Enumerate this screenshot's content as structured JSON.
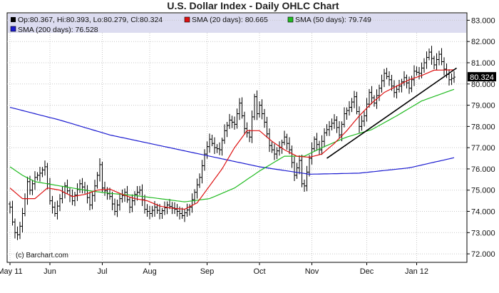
{
  "chart_data": {
    "type": "ohlc",
    "title": "U.S. Dollar Index - Daily OHLC Chart",
    "credit": "(c) Barchart.com",
    "legend": [
      {
        "label": "Op:80.367, Hi:80.393, Lo:80.279, Cl:80.324",
        "color": "#000000"
      },
      {
        "label": "SMA (20 days): 80.665",
        "color": "#dd1111"
      },
      {
        "label": "SMA (50 days): 79.749",
        "color": "#22bb22"
      },
      {
        "label": "SMA (200 days): 76.528",
        "color": "#1a1ad0"
      }
    ],
    "last_close_label": "80.324",
    "y_ticks": [
      "83.000",
      "82.000",
      "81.000",
      "80.000",
      "79.000",
      "78.000",
      "77.000",
      "76.000",
      "75.000",
      "74.000",
      "73.000",
      "72.000"
    ],
    "ylim": [
      71.6,
      83.35
    ],
    "x_labels": [
      {
        "label": "May 11",
        "day": 0
      },
      {
        "label": "Jun",
        "day": 16
      },
      {
        "label": "Jul",
        "day": 37
      },
      {
        "label": "Aug",
        "day": 56
      },
      {
        "label": "Sep",
        "day": 79
      },
      {
        "label": "Oct",
        "day": 100
      },
      {
        "label": "Nov",
        "day": 121
      },
      {
        "label": "Dec",
        "day": 143
      },
      {
        "label": "Jan 12",
        "day": 163
      }
    ],
    "close_anchors": [
      [
        0,
        74.2
      ],
      [
        1,
        73.5
      ],
      [
        2,
        73.0
      ],
      [
        3,
        72.9
      ],
      [
        4,
        73.3
      ],
      [
        5,
        73.9
      ],
      [
        6,
        74.6
      ],
      [
        7,
        75.4
      ],
      [
        8,
        75.0
      ],
      [
        10,
        75.6
      ],
      [
        12,
        75.8
      ],
      [
        14,
        76.1
      ],
      [
        16,
        74.5
      ],
      [
        18,
        73.9
      ],
      [
        20,
        74.6
      ],
      [
        22,
        75.2
      ],
      [
        25,
        74.5
      ],
      [
        28,
        75.3
      ],
      [
        30,
        75.0
      ],
      [
        32,
        74.3
      ],
      [
        34,
        75.2
      ],
      [
        36,
        76.2
      ],
      [
        37,
        75.1
      ],
      [
        40,
        74.7
      ],
      [
        42,
        74.0
      ],
      [
        44,
        74.6
      ],
      [
        46,
        74.9
      ],
      [
        48,
        74.2
      ],
      [
        50,
        74.8
      ],
      [
        52,
        75.0
      ],
      [
        54,
        74.1
      ],
      [
        56,
        73.9
      ],
      [
        58,
        74.2
      ],
      [
        60,
        73.9
      ],
      [
        63,
        74.3
      ],
      [
        66,
        74.1
      ],
      [
        69,
        73.8
      ],
      [
        72,
        74.2
      ],
      [
        74,
        74.9
      ],
      [
        76,
        75.6
      ],
      [
        78,
        76.7
      ],
      [
        80,
        77.4
      ],
      [
        82,
        77.0
      ],
      [
        84,
        76.9
      ],
      [
        86,
        77.8
      ],
      [
        88,
        78.3
      ],
      [
        90,
        78.1
      ],
      [
        92,
        79.1
      ],
      [
        94,
        77.9
      ],
      [
        96,
        77.5
      ],
      [
        98,
        79.4
      ],
      [
        99,
        78.6
      ],
      [
        100,
        79.0
      ],
      [
        102,
        78.2
      ],
      [
        104,
        77.1
      ],
      [
        106,
        76.7
      ],
      [
        108,
        77.0
      ],
      [
        110,
        77.5
      ],
      [
        112,
        76.9
      ],
      [
        114,
        75.7
      ],
      [
        116,
        76.4
      ],
      [
        117,
        75.3
      ],
      [
        118,
        75.2
      ],
      [
        120,
        76.5
      ],
      [
        122,
        77.4
      ],
      [
        124,
        76.9
      ],
      [
        126,
        77.7
      ],
      [
        128,
        78.0
      ],
      [
        130,
        78.3
      ],
      [
        132,
        77.6
      ],
      [
        134,
        78.6
      ],
      [
        136,
        78.9
      ],
      [
        138,
        79.4
      ],
      [
        140,
        78.0
      ],
      [
        142,
        78.5
      ],
      [
        144,
        79.6
      ],
      [
        146,
        79.1
      ],
      [
        148,
        79.8
      ],
      [
        150,
        80.5
      ],
      [
        152,
        80.2
      ],
      [
        154,
        79.6
      ],
      [
        156,
        79.9
      ],
      [
        158,
        80.3
      ],
      [
        160,
        79.8
      ],
      [
        162,
        80.6
      ],
      [
        164,
        80.5
      ],
      [
        166,
        81.0
      ],
      [
        168,
        81.5
      ],
      [
        170,
        80.9
      ],
      [
        172,
        81.4
      ],
      [
        174,
        80.7
      ],
      [
        176,
        80.2
      ],
      [
        178,
        80.324
      ]
    ],
    "sma200_anchors": [
      [
        0,
        78.9
      ],
      [
        20,
        78.3
      ],
      [
        40,
        77.6
      ],
      [
        60,
        77.1
      ],
      [
        80,
        76.6
      ],
      [
        100,
        76.1
      ],
      [
        120,
        75.75
      ],
      [
        140,
        75.8
      ],
      [
        160,
        76.05
      ],
      [
        178,
        76.528
      ]
    ],
    "sma50_anchors": [
      [
        0,
        76.1
      ],
      [
        5,
        75.7
      ],
      [
        10,
        75.4
      ],
      [
        20,
        75.2
      ],
      [
        30,
        75.0
      ],
      [
        40,
        74.85
      ],
      [
        50,
        74.75
      ],
      [
        60,
        74.6
      ],
      [
        70,
        74.45
      ],
      [
        80,
        74.6
      ],
      [
        90,
        75.1
      ],
      [
        100,
        75.9
      ],
      [
        110,
        76.6
      ],
      [
        118,
        76.6
      ],
      [
        125,
        77.0
      ],
      [
        135,
        77.5
      ],
      [
        145,
        77.85
      ],
      [
        155,
        78.5
      ],
      [
        165,
        79.2
      ],
      [
        178,
        79.749
      ]
    ],
    "sma20_anchors": [
      [
        0,
        75.1
      ],
      [
        5,
        74.6
      ],
      [
        10,
        74.6
      ],
      [
        15,
        75.1
      ],
      [
        20,
        75.0
      ],
      [
        25,
        74.7
      ],
      [
        30,
        74.8
      ],
      [
        35,
        75.0
      ],
      [
        40,
        75.05
      ],
      [
        45,
        74.8
      ],
      [
        50,
        74.6
      ],
      [
        55,
        74.5
      ],
      [
        60,
        74.25
      ],
      [
        65,
        74.15
      ],
      [
        70,
        74.1
      ],
      [
        75,
        74.4
      ],
      [
        80,
        75.2
      ],
      [
        85,
        76.0
      ],
      [
        90,
        77.0
      ],
      [
        95,
        77.8
      ],
      [
        100,
        77.8
      ],
      [
        105,
        77.3
      ],
      [
        110,
        76.9
      ],
      [
        115,
        76.6
      ],
      [
        120,
        76.55
      ],
      [
        125,
        76.7
      ],
      [
        130,
        77.2
      ],
      [
        135,
        77.8
      ],
      [
        140,
        78.5
      ],
      [
        145,
        79.1
      ],
      [
        150,
        79.6
      ],
      [
        155,
        79.9
      ],
      [
        160,
        80.2
      ],
      [
        165,
        80.4
      ],
      [
        170,
        80.65
      ],
      [
        178,
        80.665
      ]
    ],
    "trendline": {
      "from": [
        127,
        76.5
      ],
      "to": [
        179,
        80.75
      ],
      "color": "#000000"
    }
  }
}
